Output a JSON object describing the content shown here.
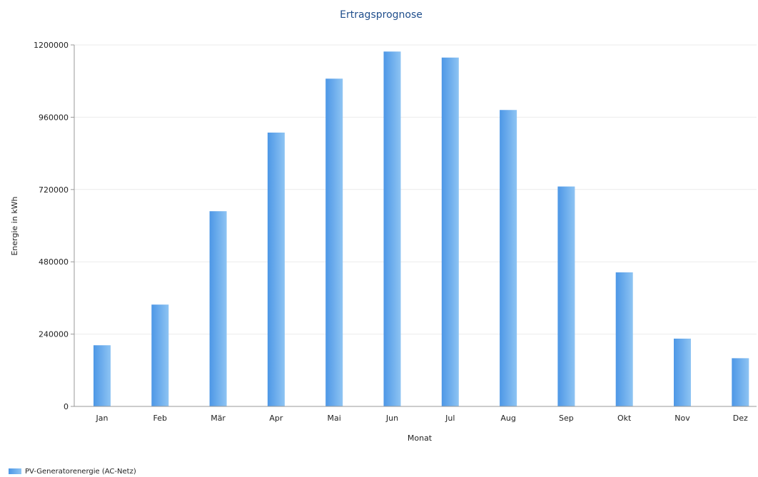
{
  "colors": {
    "bar_dark": "#4d97e6",
    "bar_light": "#8ec4f3",
    "title": "#1f4e8c",
    "grid": "#ebebeb",
    "axis": "#999999"
  },
  "chart_data": {
    "type": "bar",
    "title": "Ertragsprognose",
    "xlabel": "Monat",
    "ylabel": "Energie in kWh",
    "categories": [
      "Jan",
      "Feb",
      "Mär",
      "Apr",
      "Mai",
      "Jun",
      "Jul",
      "Aug",
      "Sep",
      "Okt",
      "Nov",
      "Dez"
    ],
    "series": [
      {
        "name": "PV-Generatorenergie (AC-Netz)",
        "values": [
          203000,
          338000,
          648000,
          909000,
          1088000,
          1178000,
          1158000,
          984000,
          730000,
          445000,
          225000,
          160000
        ]
      }
    ],
    "ylim": [
      0,
      1200000
    ],
    "yticks": [
      0,
      240000,
      480000,
      720000,
      960000,
      1200000
    ],
    "grid": true,
    "legend_position": "bottom-left"
  }
}
